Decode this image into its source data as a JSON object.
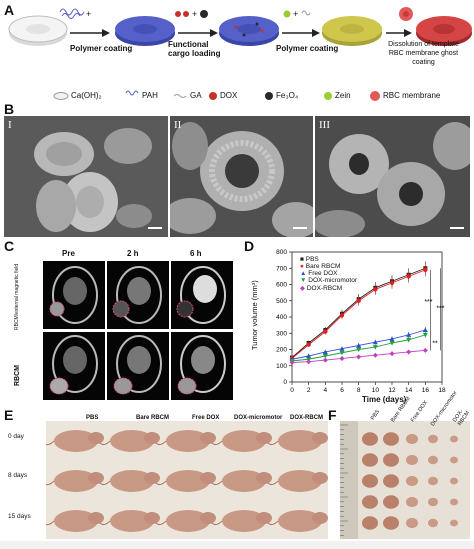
{
  "panels": {
    "a": "A",
    "b": "B",
    "c": "C",
    "d": "D",
    "e": "E",
    "f": "F"
  },
  "schematic": {
    "steps": [
      "Polymer coating",
      "Functional cargo loading",
      "Polymer coating",
      "Dissolution of template RBC membrane ghost coating"
    ],
    "legend": [
      {
        "name": "Ca(OH)₂",
        "color": "#f2f2f2"
      },
      {
        "name": "PAH",
        "color": "#5561c9"
      },
      {
        "name": "GA",
        "color": "#9a9a9a"
      },
      {
        "name": "DOX",
        "color": "#c7302b"
      },
      {
        "name": "Fe₃O₄",
        "color": "#2a2a2a"
      },
      {
        "name": "Zein",
        "color": "#9acd32"
      },
      {
        "name": "RBC membrane",
        "color": "#e05a5a"
      }
    ]
  },
  "sem": {
    "labels": [
      "I",
      "II",
      "III"
    ]
  },
  "mri": {
    "times": [
      "Pre",
      "2 h",
      "6 h"
    ],
    "rows": [
      "RBCM/external magnetic field",
      "RBCM"
    ]
  },
  "chart_data": {
    "type": "line",
    "xlabel": "Time (days)",
    "ylabel": "Tumor volume (mm³)",
    "xlim": [
      0,
      18
    ],
    "ylim": [
      0,
      800
    ],
    "xticks": [
      0,
      2,
      4,
      6,
      8,
      10,
      12,
      14,
      16,
      18
    ],
    "yticks": [
      0,
      100,
      200,
      300,
      400,
      500,
      600,
      700,
      800
    ],
    "x": [
      0,
      2,
      4,
      6,
      8,
      10,
      12,
      14,
      16
    ],
    "series": [
      {
        "name": "PBS",
        "color": "#222222",
        "marker": "square",
        "values": [
          150,
          240,
          320,
          420,
          510,
          580,
          620,
          660,
          700
        ]
      },
      {
        "name": "Bare RBCM",
        "color": "#e02020",
        "marker": "circle",
        "values": [
          145,
          230,
          310,
          410,
          500,
          570,
          610,
          650,
          690
        ]
      },
      {
        "name": "Free DOX",
        "color": "#3050d0",
        "marker": "triangle-up",
        "values": [
          140,
          160,
          185,
          205,
          225,
          245,
          265,
          290,
          320
        ]
      },
      {
        "name": "DOX-micromotor",
        "color": "#20a040",
        "marker": "triangle-down",
        "values": [
          130,
          140,
          160,
          180,
          200,
          215,
          240,
          260,
          290
        ]
      },
      {
        "name": "DOX-RBCM",
        "color": "#c040c0",
        "marker": "diamond",
        "values": [
          120,
          125,
          135,
          145,
          155,
          165,
          175,
          185,
          195
        ]
      }
    ],
    "annotations": [
      "***",
      "***",
      "**"
    ],
    "legend": "top-left"
  },
  "mice": {
    "groups": [
      "PBS",
      "Bare RBCM",
      "Free DOX",
      "DOX-micromotor",
      "DOX-RBCM"
    ],
    "days": [
      "0 day",
      "8 days",
      "15 days"
    ]
  },
  "tumors": {
    "groups": [
      "PBS",
      "Bare RBCM",
      "Free DOX",
      "DOX-micromotor",
      "DOX-RBCM"
    ]
  }
}
